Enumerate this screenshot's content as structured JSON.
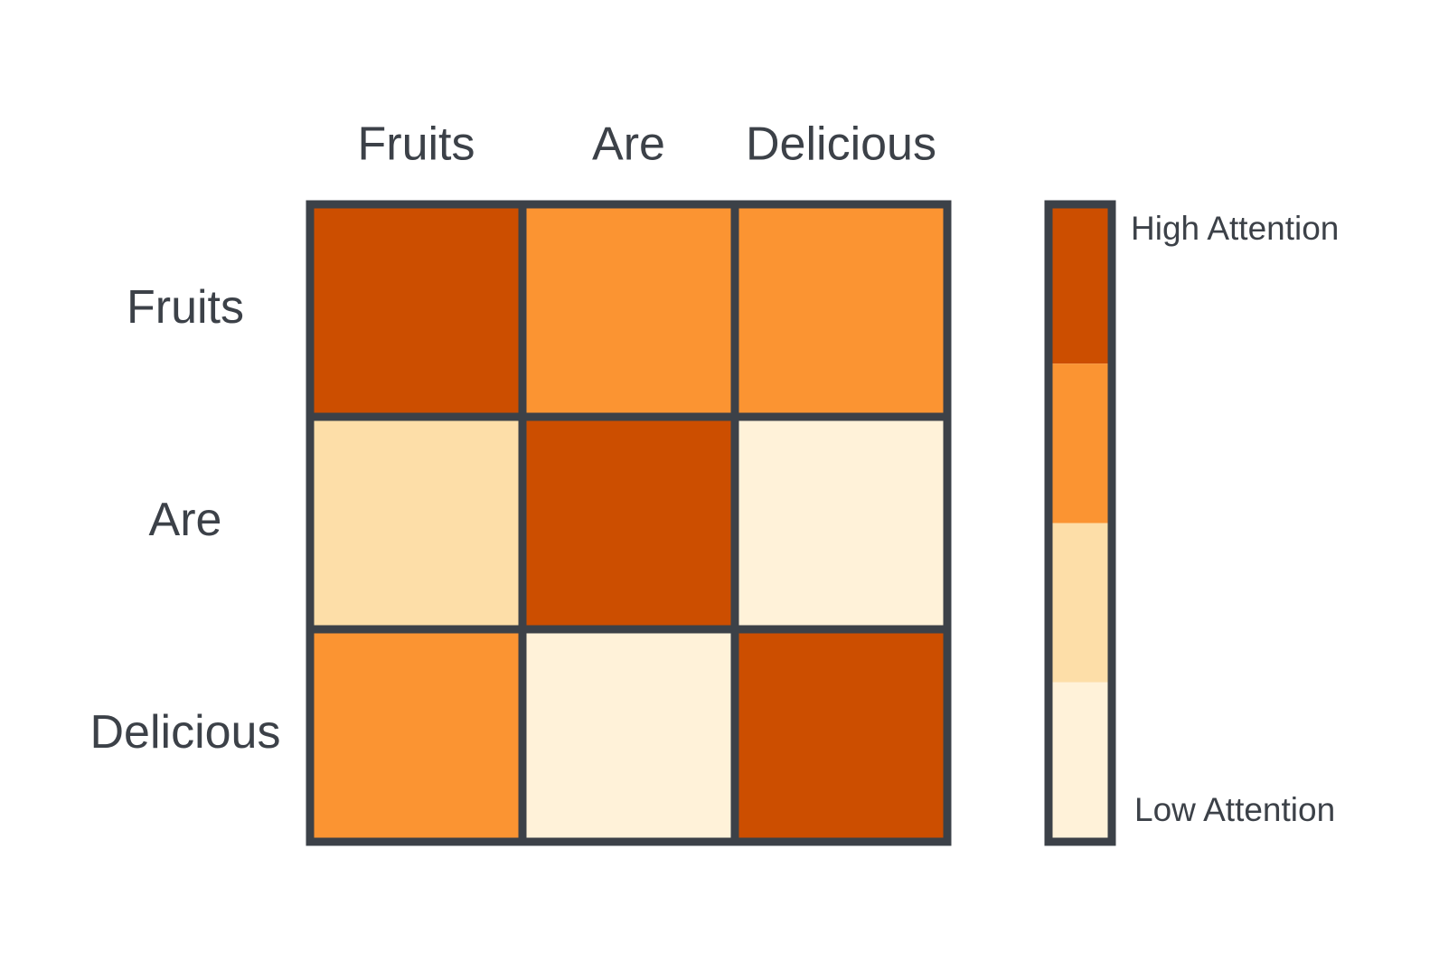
{
  "columns": [
    "Fruits",
    "Are",
    "Delicious"
  ],
  "rows": [
    {
      "label": "Fruits",
      "colors": [
        "#cc4e00",
        "#fb9432",
        "#fb9432"
      ]
    },
    {
      "label": "Are",
      "colors": [
        "#fddea8",
        "#cc4e00",
        "#fff2d9"
      ]
    },
    {
      "label": "Delicious",
      "colors": [
        "#fb9432",
        "#fff2d9",
        "#cc4e00"
      ]
    }
  ],
  "legend": {
    "high_label": "High Attention",
    "low_label": "Low Attention",
    "colors": [
      "#cc4e00",
      "#fb9432",
      "#fddea8",
      "#fff2d9"
    ]
  }
}
